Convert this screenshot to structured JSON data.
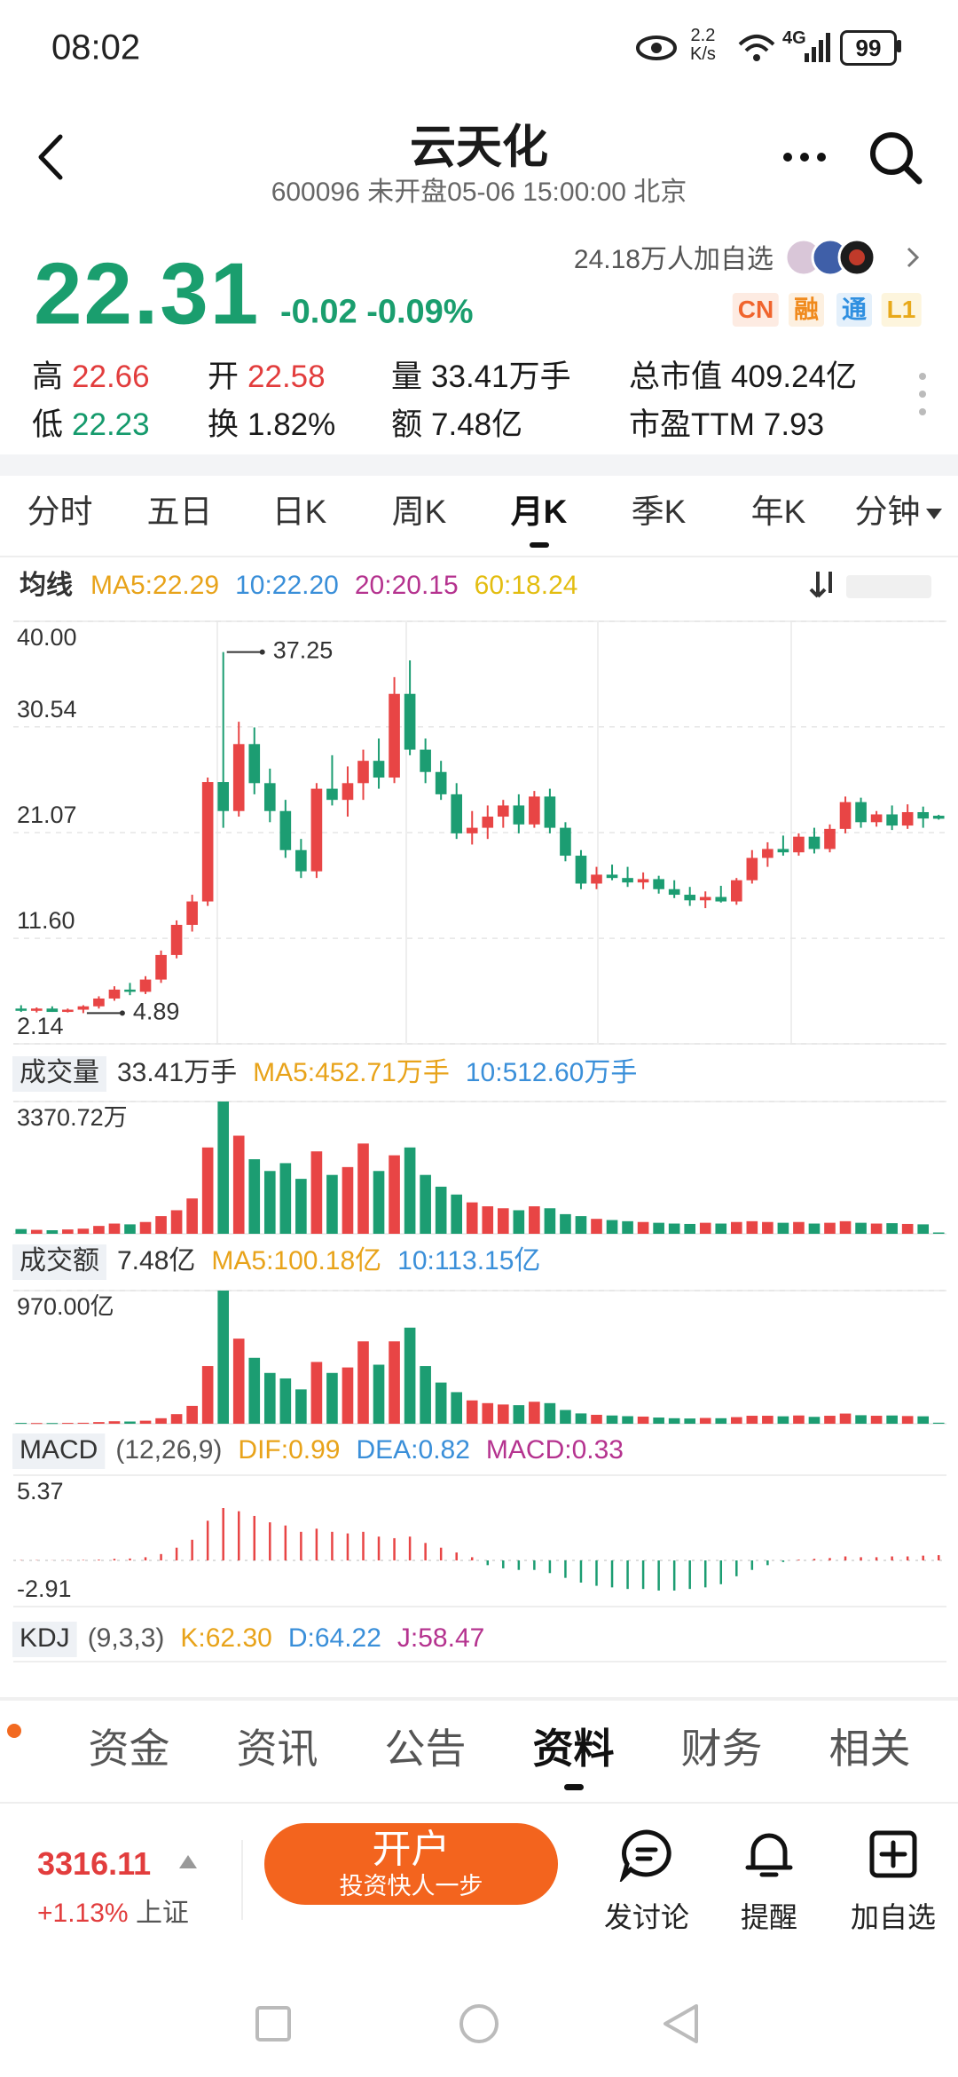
{
  "status_bar": {
    "time": "08:02",
    "speed": "2.2",
    "speed_unit": "K/s",
    "network": "4G",
    "battery": "99"
  },
  "header": {
    "title": "云天化",
    "subtitle": "600096 未开盘05-06 15:00:00 北京"
  },
  "quote": {
    "price": "22.31",
    "change": "-0.02",
    "change_pct": "-0.09%",
    "followers": "24.18万人加自选",
    "tags": [
      {
        "text": "CN",
        "color": "#f0642d",
        "background": "#fdebe2"
      },
      {
        "text": "融",
        "color": "#f08a1d",
        "background": "#fdf0e0"
      },
      {
        "text": "通",
        "color": "#2f8fe0",
        "background": "#e4f0fb"
      },
      {
        "text": "L1",
        "color": "#e8a91a",
        "background": "#fdf5dd"
      }
    ]
  },
  "stats": [
    [
      {
        "label": "高",
        "value": "22.66",
        "color": "#e23d3d"
      },
      {
        "label": "开",
        "value": "22.58",
        "color": "#e23d3d"
      },
      {
        "label": "量",
        "value": "33.41万手"
      },
      {
        "label": "总市值",
        "value": "409.24亿"
      }
    ],
    [
      {
        "label": "低",
        "value": "22.23",
        "color": "#159a6c"
      },
      {
        "label": "换",
        "value": "1.82%"
      },
      {
        "label": "额",
        "value": "7.48亿"
      },
      {
        "label": "市盈TTM",
        "value": "7.93"
      }
    ]
  ],
  "period_tabs": {
    "items": [
      "分时",
      "五日",
      "日K",
      "周K",
      "月K",
      "季K",
      "年K",
      "分钟"
    ],
    "active": 4
  },
  "chart_data": [
    {
      "type": "candlestick",
      "up_color": "#e84545",
      "down_color": "#1c9d72",
      "legend": {
        "label": "均线",
        "boxed": false,
        "items": [
          {
            "text": "MA5:22.29",
            "color": "#e8a31a"
          },
          {
            "text": "10:22.20",
            "color": "#3a8fd9"
          },
          {
            "text": "20:20.15",
            "color": "#b5338f"
          },
          {
            "text": "60:18.24",
            "color": "#e3bd10"
          }
        ]
      },
      "open": [
        5.3,
        5.1,
        5.3,
        5.0,
        5.2,
        5.5,
        6.2,
        7.0,
        6.8,
        7.9,
        10.1,
        12.8,
        14.9,
        25.6,
        23.0,
        29.0,
        25.5,
        23.0,
        19.5,
        17.6,
        25.0,
        24.0,
        25.5,
        27.5,
        26.0,
        33.5,
        28.5,
        26.5,
        24.5,
        21.0,
        21.5,
        22.5,
        23.5,
        21.8,
        24.3,
        21.5,
        19.0,
        16.5,
        17.3,
        17.0,
        16.6,
        16.9,
        16.0,
        15.5,
        15.0,
        15.3,
        14.9,
        16.8,
        18.8,
        19.6,
        19.3,
        20.7,
        19.6,
        21.4,
        23.8,
        22.0,
        22.7,
        21.7,
        22.9,
        22.58
      ],
      "high": [
        5.6,
        5.4,
        5.5,
        5.3,
        5.6,
        6.4,
        7.3,
        7.6,
        8.2,
        10.5,
        13.2,
        15.5,
        26.0,
        37.25,
        31.0,
        30.5,
        26.8,
        24.0,
        20.5,
        25.5,
        28.0,
        27.0,
        28.5,
        29.5,
        35.0,
        36.5,
        29.5,
        27.5,
        25.5,
        23.0,
        23.5,
        24.0,
        24.5,
        24.8,
        25.0,
        22.0,
        19.5,
        18.0,
        18.2,
        18.0,
        17.5,
        17.2,
        16.8,
        16.2,
        15.8,
        16.3,
        17.0,
        19.5,
        20.2,
        20.8,
        21.0,
        21.5,
        21.8,
        24.3,
        24.2,
        23.0,
        23.5,
        23.6,
        23.4,
        22.66
      ],
      "low": [
        5.0,
        4.95,
        5.0,
        4.95,
        4.89,
        5.3,
        6.0,
        6.5,
        6.6,
        7.6,
        9.8,
        12.2,
        14.5,
        21.5,
        22.5,
        24.5,
        22.0,
        18.8,
        17.0,
        17.0,
        23.5,
        22.5,
        24.0,
        25.0,
        25.5,
        28.0,
        25.5,
        24.0,
        20.5,
        20.0,
        20.5,
        21.5,
        21.0,
        21.5,
        21.0,
        18.5,
        16.0,
        16.0,
        16.8,
        16.2,
        16.0,
        15.6,
        15.2,
        14.5,
        14.3,
        14.8,
        14.6,
        16.5,
        18.0,
        19.0,
        19.0,
        19.2,
        19.3,
        21.0,
        21.5,
        21.6,
        21.3,
        21.4,
        21.5,
        22.23
      ],
      "close": [
        5.1,
        5.3,
        5.0,
        5.2,
        5.5,
        6.2,
        7.0,
        6.8,
        7.9,
        10.1,
        12.8,
        14.9,
        25.6,
        23.0,
        29.0,
        25.5,
        23.0,
        19.5,
        17.6,
        25.0,
        24.0,
        25.5,
        27.5,
        26.0,
        33.5,
        28.5,
        26.5,
        24.5,
        21.0,
        21.5,
        22.5,
        23.5,
        21.8,
        24.3,
        21.5,
        19.0,
        16.5,
        17.3,
        17.0,
        16.6,
        16.9,
        16.0,
        15.5,
        15.0,
        15.3,
        14.9,
        16.8,
        18.8,
        19.6,
        19.3,
        20.7,
        19.6,
        21.4,
        23.8,
        22.0,
        22.7,
        21.7,
        22.9,
        22.33,
        22.31
      ],
      "high_mark": 37.25,
      "low_mark": 4.89,
      "ylim": [
        2.14,
        40
      ],
      "yticks": [
        {
          "value": 40,
          "label": "40.00"
        },
        30.54,
        21.07,
        {
          "value": 11.6,
          "label": "11.60"
        },
        2.14
      ],
      "grid": true
    },
    {
      "type": "bar",
      "legend": {
        "label": "成交量",
        "boxed": true,
        "items": [
          {
            "text": "33.41万手",
            "color": "#333333"
          },
          {
            "text": "MA5:452.71万手",
            "color": "#e8a31a"
          },
          {
            "text": "10:512.60万手",
            "color": "#3a8fd9"
          }
        ]
      },
      "values": [
        120,
        100,
        90,
        110,
        130,
        200,
        260,
        240,
        300,
        450,
        600,
        900,
        2200,
        3370.72,
        2500,
        1900,
        1600,
        1800,
        1400,
        2100,
        1500,
        1700,
        2300,
        1600,
        2000,
        2200,
        1500,
        1200,
        1000,
        800,
        700,
        650,
        600,
        700,
        650,
        500,
        450,
        380,
        350,
        320,
        300,
        280,
        260,
        250,
        280,
        260,
        300,
        320,
        300,
        280,
        300,
        260,
        280,
        320,
        280,
        260,
        270,
        250,
        240,
        33.41
      ],
      "ylim": [
        0,
        3370.72
      ],
      "yticks": [
        {
          "value": 3370.72,
          "label": "3370.72万"
        }
      ],
      "grid": true
    },
    {
      "type": "bar",
      "legend": {
        "label": "成交额",
        "boxed": true,
        "items": [
          {
            "text": "7.48亿",
            "color": "#333333"
          },
          {
            "text": "MA5:100.18亿",
            "color": "#e8a31a"
          },
          {
            "text": "10:113.15亿",
            "color": "#3a8fd9"
          }
        ]
      },
      "values": [
        6,
        5,
        5,
        6,
        7,
        12,
        18,
        16,
        22,
        40,
        70,
        130,
        420,
        970,
        620,
        480,
        370,
        330,
        250,
        450,
        370,
        410,
        600,
        430,
        600,
        700,
        420,
        300,
        230,
        170,
        150,
        140,
        135,
        160,
        150,
        100,
        75,
        65,
        60,
        55,
        52,
        45,
        40,
        38,
        42,
        40,
        48,
        58,
        58,
        54,
        60,
        50,
        58,
        74,
        62,
        58,
        60,
        56,
        54,
        7.48
      ],
      "ylim": [
        0,
        970
      ],
      "yticks": [
        {
          "value": 970,
          "label": "970.00亿"
        }
      ],
      "grid": true
    },
    {
      "type": "macd",
      "up_color": "#e84545",
      "down_color": "#1c9d72",
      "legend": {
        "label": "MACD",
        "boxed": true,
        "items": [
          {
            "text": "(12,26,9)",
            "color": "#555555"
          },
          {
            "text": "DIF:0.99",
            "color": "#e8a31a"
          },
          {
            "text": "DEA:0.82",
            "color": "#3a8fd9"
          },
          {
            "text": "MACD:0.33",
            "color": "#b5338f"
          }
        ]
      },
      "values": [
        0.02,
        0.02,
        0.01,
        0.02,
        0.03,
        0.05,
        0.1,
        0.12,
        0.2,
        0.4,
        0.8,
        1.3,
        2.5,
        3.3,
        3.1,
        2.8,
        2.4,
        2.2,
        1.8,
        2.0,
        1.8,
        1.7,
        1.8,
        1.5,
        1.4,
        1.5,
        1.1,
        0.8,
        0.5,
        0.2,
        -0.3,
        -0.5,
        -0.6,
        -0.6,
        -0.8,
        -1.1,
        -1.4,
        -1.6,
        -1.7,
        -1.8,
        -1.8,
        -1.9,
        -1.9,
        -1.8,
        -1.7,
        -1.5,
        -1.0,
        -0.6,
        -0.3,
        -0.1,
        0.05,
        0.1,
        0.15,
        0.25,
        0.2,
        0.2,
        0.25,
        0.25,
        0.3,
        0.33
      ],
      "ylim": [
        -2.91,
        5.37
      ],
      "yticks": [
        5.37,
        -2.91
      ],
      "grid": false
    }
  ],
  "kdj_legend": {
    "label": "KDJ",
    "boxed": true,
    "items": [
      {
        "text": "(9,3,3)",
        "color": "#555555"
      },
      {
        "text": "K:62.30",
        "color": "#e8a31a"
      },
      {
        "text": "D:64.22",
        "color": "#3a8fd9"
      },
      {
        "text": "J:58.47",
        "color": "#b5338f"
      }
    ]
  },
  "bottom_tabs": {
    "items": [
      "资金",
      "资讯",
      "公告",
      "资料",
      "财务",
      "相关"
    ],
    "active": 3
  },
  "footer": {
    "index_value": "3316.11",
    "index_change": "+1.13%",
    "index_name": "上证",
    "button_title": "开户",
    "button_subtitle": "投资快人一步",
    "actions": [
      "发讨论",
      "提醒",
      "加自选"
    ]
  }
}
